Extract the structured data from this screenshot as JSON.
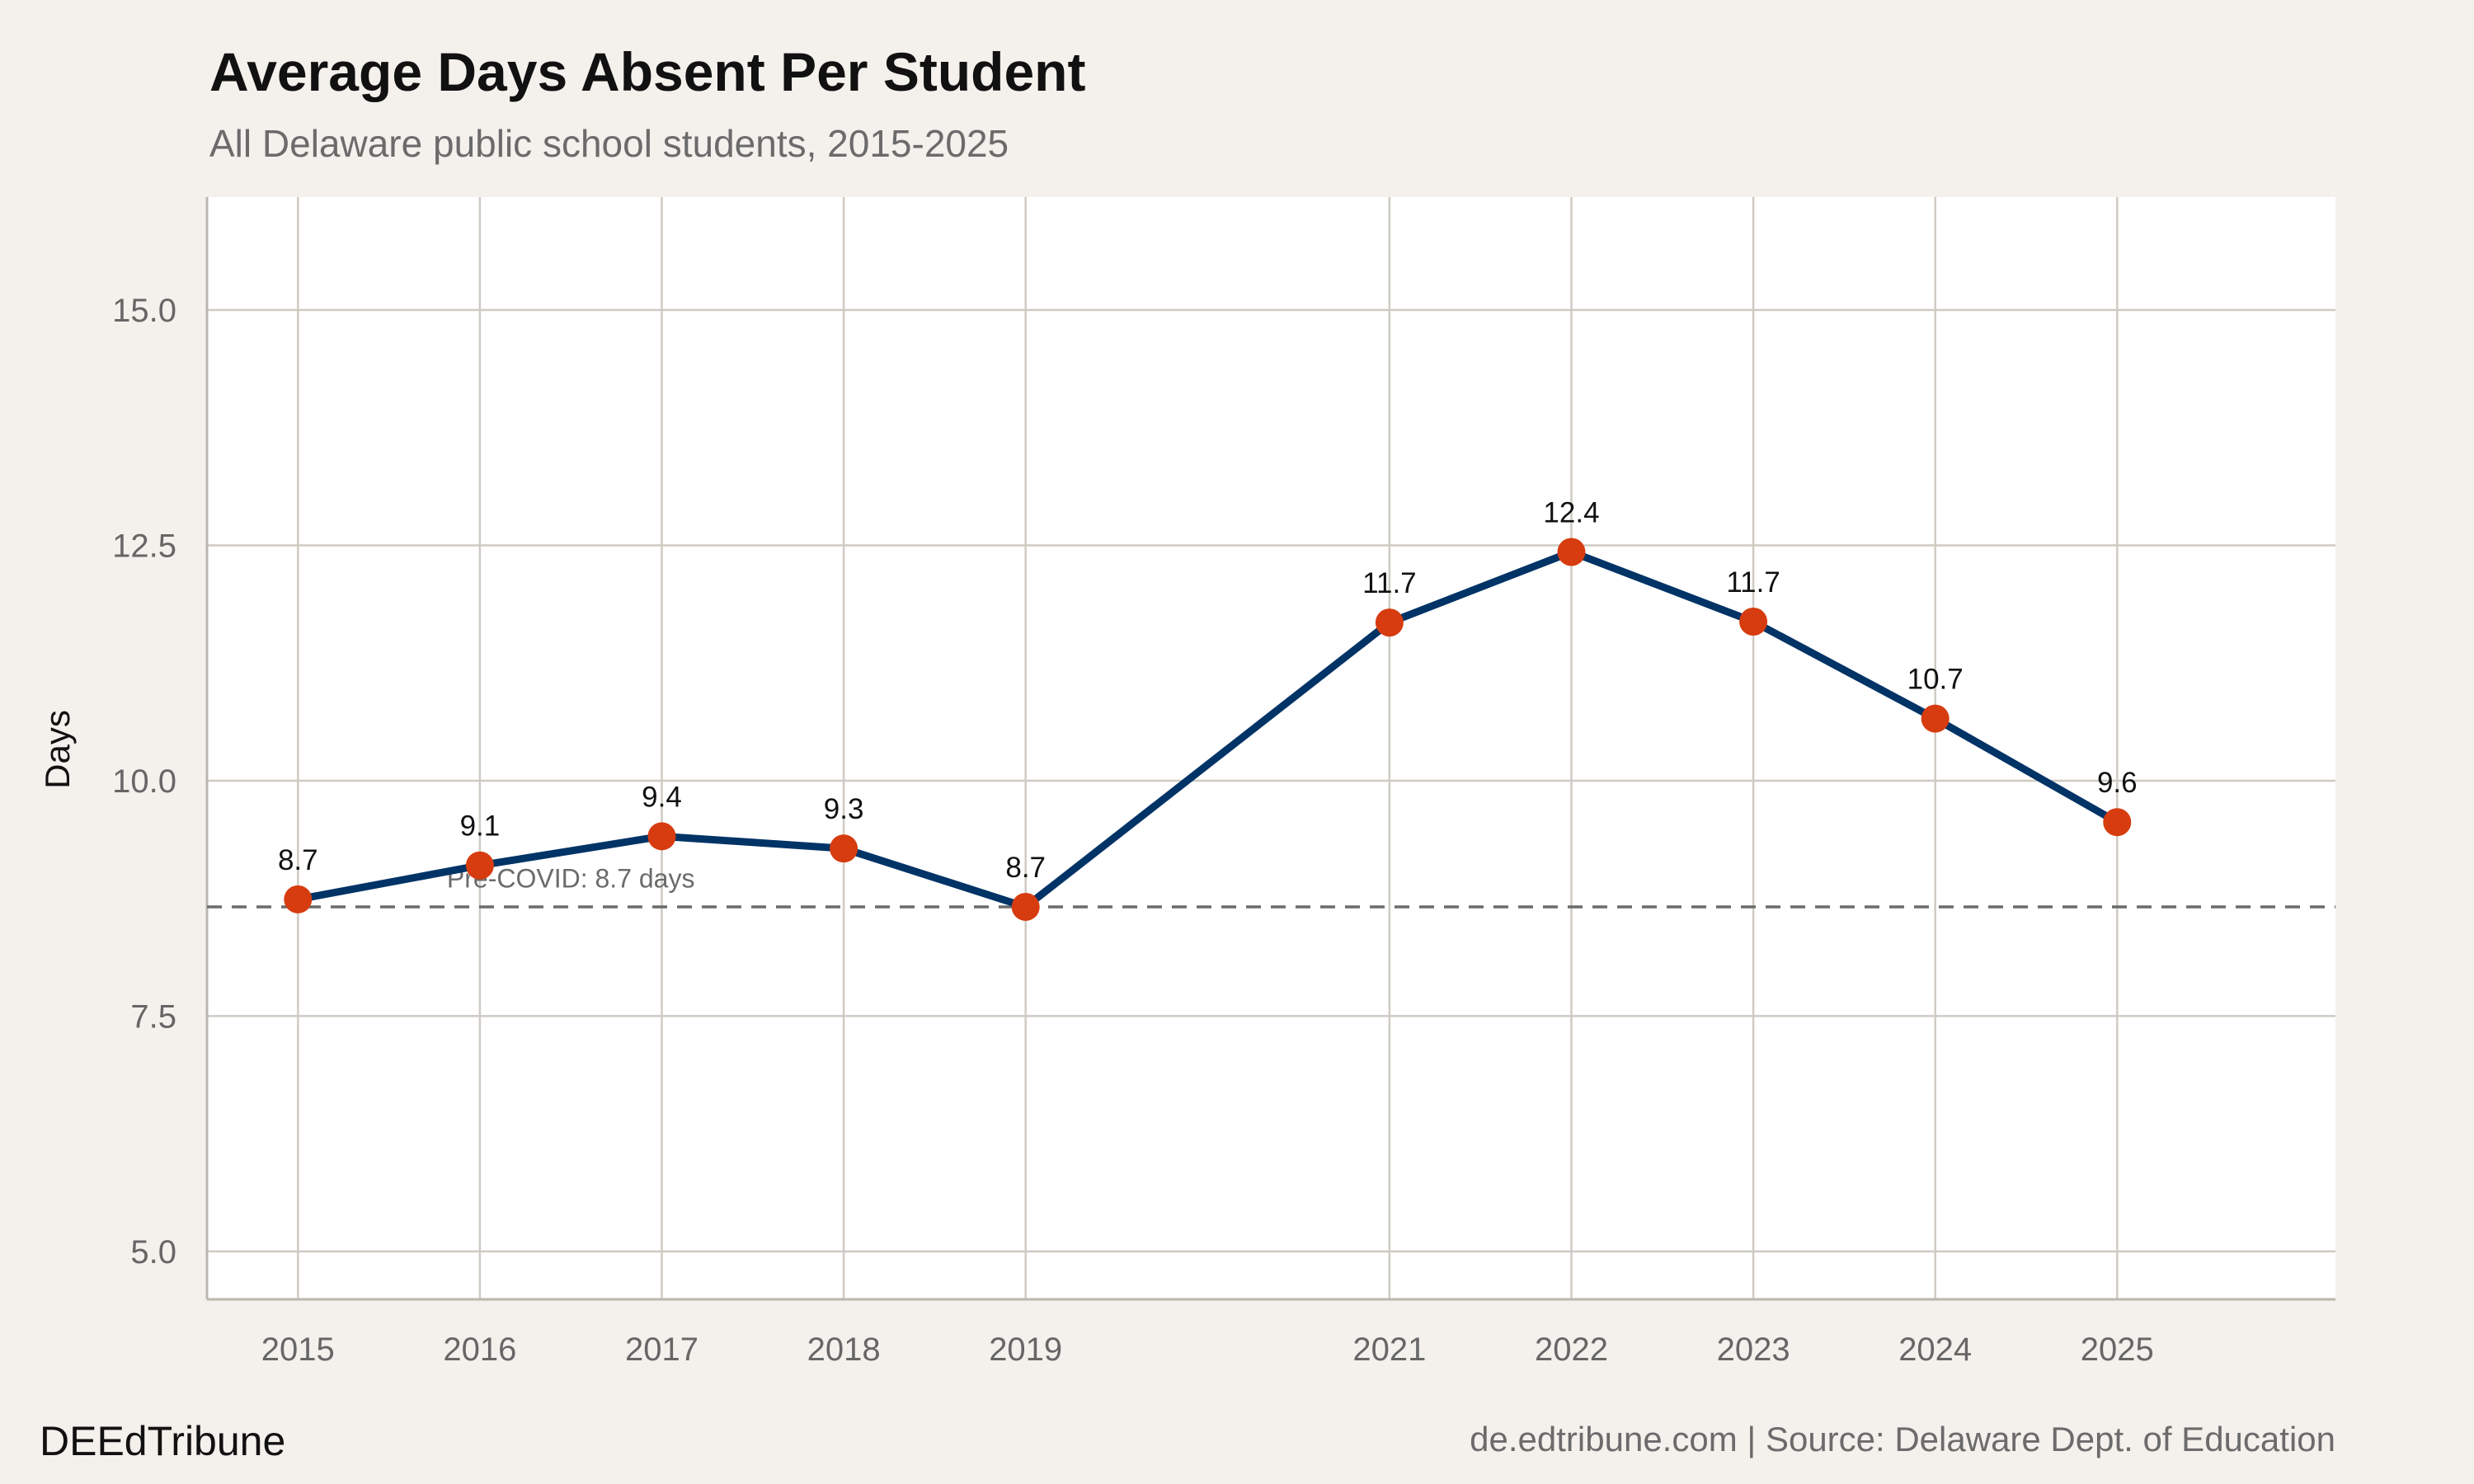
{
  "chart_data": {
    "type": "line",
    "title": "Average Days Absent Per Student",
    "subtitle": "All Delaware public school students, 2015-2025",
    "xlabel": "",
    "ylabel": "Days",
    "x": [
      2015,
      2016,
      2017,
      2018,
      2019,
      2021,
      2022,
      2023,
      2024,
      2025
    ],
    "xticks": [
      "2015",
      "2016",
      "2017",
      "2018",
      "2019",
      "2021",
      "2022",
      "2023",
      "2024",
      "2025"
    ],
    "values": [
      8.74,
      9.1,
      9.41,
      9.28,
      8.66,
      11.68,
      12.43,
      11.69,
      10.66,
      9.56
    ],
    "data_labels": [
      "8.7",
      "9.1",
      "9.4",
      "9.3",
      "8.7",
      "11.7",
      "12.4",
      "11.7",
      "10.7",
      "9.6"
    ],
    "yticks": [
      "5.0",
      "7.5",
      "10.0",
      "12.5",
      "15.0"
    ],
    "ytick_values": [
      5,
      7.5,
      10,
      12.5,
      15
    ],
    "xlim": [
      2014.5,
      2026.2
    ],
    "ylim": [
      4.5,
      16.2
    ],
    "grid": true,
    "reference_line": {
      "value": 8.66,
      "style": "dashed",
      "label": "Pre-COVID: 8.7 days",
      "label_x": 2016.5,
      "label_y": 8.96
    },
    "colors": {
      "line": "#003366",
      "points": "#d63c0f",
      "reference": "#6b6b6b",
      "background": "#f4f1ec",
      "panel": "#ffffff",
      "grid": "#cfcac2"
    }
  },
  "footer": {
    "brand": "DEEdTribune",
    "source": "de.edtribune.com | Source: Delaware Dept. of Education"
  }
}
